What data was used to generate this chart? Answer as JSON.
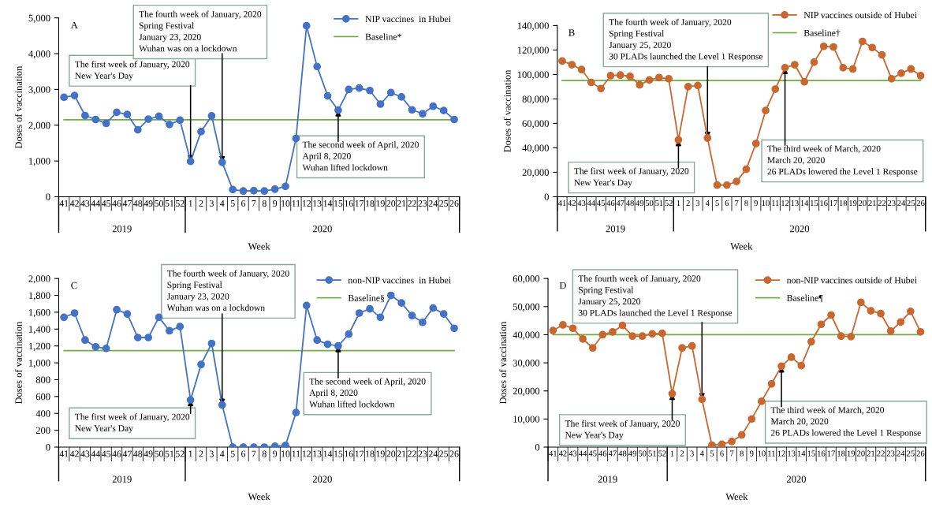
{
  "chart_data": [
    {
      "type": "line",
      "title": "A",
      "xlabel": "Week",
      "ylabel": "Doses of vaccination",
      "categories": [
        "41",
        "42",
        "43",
        "44",
        "45",
        "46",
        "47",
        "48",
        "49",
        "50",
        "51",
        "52",
        "1",
        "2",
        "3",
        "4",
        "5",
        "6",
        "7",
        "8",
        "9",
        "10",
        "11",
        "12",
        "13",
        "14",
        "15",
        "16",
        "17",
        "18",
        "19",
        "20",
        "21",
        "22",
        "23",
        "24",
        "25",
        "26"
      ],
      "series": [
        {
          "name": "NIP vaccines  in Hubei",
          "color": "#4472c4",
          "values": [
            2780,
            2830,
            2270,
            2160,
            2050,
            2360,
            2300,
            1870,
            2170,
            2250,
            2020,
            2140,
            990,
            1820,
            2260,
            960,
            200,
            160,
            170,
            160,
            210,
            290,
            1630,
            4780,
            3640,
            2820,
            2420,
            3000,
            3040,
            2970,
            2590,
            2910,
            2790,
            2430,
            2320,
            2530,
            2410,
            2160
          ]
        }
      ],
      "ref_lines": [
        {
          "axis": "y",
          "value": 2150,
          "label": "Baseline*",
          "color": "#70ad47"
        }
      ],
      "ylim": [
        0,
        5000
      ],
      "yticks": [
        0,
        {
          "value": 1000,
          "label": "1,000"
        },
        {
          "value": 2000,
          "label": "2,000"
        },
        {
          "value": 3000,
          "label": "3,000"
        },
        {
          "value": 4000,
          "label": "4,000"
        },
        {
          "value": 5000,
          "label": "5,000"
        }
      ],
      "annotations": [
        {
          "text": "The first week of January, 2020\nNew Year's Day",
          "x": "1",
          "y": 990
        },
        {
          "text": "The fourth week of January, 2020\nSpring Festival\nJanuary 23, 2020\nWuhan was on a lockdown",
          "x": "4",
          "y": 960
        },
        {
          "text": "The second week of April, 2020\nApril 8, 2020\nWuhan lifted lockdown",
          "x": "15",
          "y": 2420
        },
        "2019",
        "2020"
      ],
      "legend": "top right",
      "marker": "circle",
      "grid": false
    },
    {
      "type": "line",
      "title": "B",
      "xlabel": "Week",
      "ylabel": "Doses of vaccination",
      "categories": [
        "41",
        "42",
        "43",
        "44",
        "45",
        "46",
        "47",
        "48",
        "49",
        "50",
        "51",
        "52",
        "1",
        "2",
        "3",
        "4",
        "5",
        "6",
        "7",
        "8",
        "9",
        "10",
        "11",
        "12",
        "13",
        "14",
        "15",
        "16",
        "17",
        "18",
        "19",
        "20",
        "21",
        "22",
        "23",
        "24",
        "25",
        "26"
      ],
      "series": [
        {
          "name": "NIP vaccines outside of Hubei",
          "color": "#c8672f",
          "values": [
            111000,
            108000,
            104000,
            93500,
            88500,
            99000,
            99500,
            98500,
            91500,
            95500,
            97500,
            96500,
            46500,
            90000,
            91000,
            48000,
            9500,
            9500,
            12500,
            22500,
            43500,
            70500,
            88000,
            105500,
            108000,
            94000,
            110000,
            123000,
            122500,
            105500,
            104500,
            127000,
            122000,
            116000,
            96500,
            101000,
            104500,
            99000
          ]
        }
      ],
      "ref_lines": [
        {
          "axis": "y",
          "value": 95000,
          "label": "Baseline†",
          "color": "#70ad47"
        }
      ],
      "ylim": [
        0,
        140000
      ],
      "yticks": [
        0,
        {
          "value": 20000,
          "label": "20,000"
        },
        {
          "value": 40000,
          "label": "40,000"
        },
        {
          "value": 60000,
          "label": "60,000"
        },
        {
          "value": 80000,
          "label": "80,000"
        },
        {
          "value": 100000,
          "label": "100,000"
        },
        {
          "value": 120000,
          "label": "120,000"
        },
        {
          "value": 140000,
          "label": "140,000"
        }
      ],
      "annotations": [
        {
          "text": "The first week of January, 2020\nNew Year's Day",
          "x": "1",
          "y": 46500
        },
        {
          "text": "The fourth week of January, 2020\nSpring Festival\nJanuary 25, 2020\n30 PLADs launched the Level 1 Response",
          "x": "4",
          "y": 48000
        },
        {
          "text": "The third week of March, 2020\nMarch 20, 2020\n26 PLADs lowered the Level 1 Response",
          "x": "12",
          "y": 105500
        },
        "2019",
        "2020"
      ],
      "legend": "top right",
      "marker": "circle",
      "grid": false
    },
    {
      "type": "line",
      "title": "C",
      "xlabel": "Week",
      "ylabel": "Doses of vaccination",
      "categories": [
        "41",
        "42",
        "43",
        "44",
        "45",
        "46",
        "47",
        "48",
        "49",
        "50",
        "51",
        "52",
        "1",
        "2",
        "3",
        "4",
        "5",
        "6",
        "7",
        "8",
        "9",
        "10",
        "11",
        "12",
        "13",
        "14",
        "15",
        "16",
        "17",
        "18",
        "19",
        "20",
        "21",
        "22",
        "23",
        "24",
        "25",
        "26"
      ],
      "series": [
        {
          "name": "non-NIP vaccines  in Hubei",
          "color": "#4472c4",
          "values": [
            1540,
            1590,
            1270,
            1190,
            1170,
            1630,
            1580,
            1300,
            1300,
            1540,
            1380,
            1430,
            560,
            980,
            1230,
            500,
            0,
            0,
            0,
            0,
            10,
            20,
            410,
            1680,
            1270,
            1220,
            1200,
            1340,
            1590,
            1640,
            1540,
            1800,
            1710,
            1560,
            1480,
            1650,
            1580,
            1410
          ]
        }
      ],
      "ref_lines": [
        {
          "axis": "y",
          "value": 1145,
          "label": "Baseline§",
          "color": "#70ad47"
        }
      ],
      "ylim": [
        0,
        2000
      ],
      "yticks": [
        0,
        200,
        400,
        600,
        800,
        {
          "value": 1000,
          "label": "1,000"
        },
        {
          "value": 1200,
          "label": "1,200"
        },
        {
          "value": 1400,
          "label": "1,400"
        },
        {
          "value": 1600,
          "label": "1,600"
        },
        {
          "value": 1800,
          "label": "1,800"
        },
        {
          "value": 2000,
          "label": "2,000"
        }
      ],
      "annotations": [
        {
          "text": "The first week of January, 2020\nNew Year's Day",
          "x": "1",
          "y": 560
        },
        {
          "text": "The fourth week of January, 2020\nSpring Festival\nJanuary 23, 2020\nWuhan was on a lockdown",
          "x": "4",
          "y": 500
        },
        {
          "text": "The second week of April, 2020\nApril 8, 2020\nWuhan lifted lockdown",
          "x": "15",
          "y": 1200
        },
        "2019",
        "2020"
      ],
      "legend": "top right",
      "marker": "circle",
      "grid": false
    },
    {
      "type": "line",
      "title": "D",
      "xlabel": "Week",
      "ylabel": "Doses of vaccination",
      "categories": [
        "41",
        "42",
        "43",
        "44",
        "45",
        "46",
        "47",
        "48",
        "49",
        "50",
        "51",
        "52",
        "1",
        "2",
        "3",
        "4",
        "5",
        "6",
        "7",
        "8",
        "9",
        "10",
        "11",
        "12",
        "13",
        "14",
        "15",
        "16",
        "17",
        "18",
        "19",
        "20",
        "21",
        "22",
        "23",
        "24",
        "25",
        "26"
      ],
      "series": [
        {
          "name": "non-NIP vaccines outside of Hubei",
          "color": "#c8672f",
          "values": [
            41500,
            43500,
            42300,
            38500,
            35300,
            40000,
            41000,
            43300,
            39500,
            39500,
            40300,
            40500,
            19000,
            35300,
            36000,
            17000,
            700,
            1000,
            2000,
            4300,
            10000,
            16300,
            22500,
            28800,
            32000,
            29000,
            37500,
            43700,
            47000,
            39500,
            39300,
            51500,
            48500,
            47500,
            41300,
            44500,
            48300,
            41000
          ]
        }
      ],
      "ref_lines": [
        {
          "axis": "y",
          "value": 40000,
          "label": "Baseline¶",
          "color": "#70ad47"
        }
      ],
      "ylim": [
        0,
        60000
      ],
      "yticks": [
        0,
        {
          "value": 10000,
          "label": "10,000"
        },
        {
          "value": 20000,
          "label": "20,000"
        },
        {
          "value": 30000,
          "label": "30,000"
        },
        {
          "value": 40000,
          "label": "40,000"
        },
        {
          "value": 50000,
          "label": "50,000"
        },
        {
          "value": 60000,
          "label": "60,000"
        }
      ],
      "annotations": [
        {
          "text": "The first week of January, 2020\nNew Year's Day",
          "x": "1",
          "y": 19000
        },
        {
          "text": "The fourth week of January, 2020\nSpring Festival\nJanuary 25, 2020\n30 PLADs launched the Level 1 Response",
          "x": "4",
          "y": 17000
        },
        {
          "text": "The third week of March, 2020\nMarch 20, 2020\n26 PLADs lowered the Level 1 Response",
          "x": "12",
          "y": 28800
        },
        "2019",
        "2020"
      ],
      "legend": "top right",
      "marker": "circle",
      "grid": false
    }
  ]
}
